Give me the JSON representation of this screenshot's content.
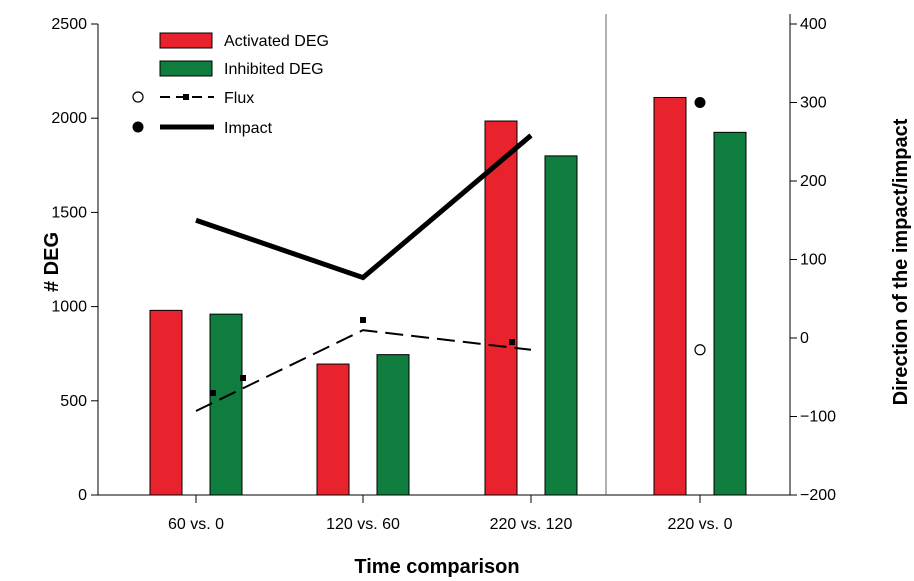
{
  "chart_data": {
    "type": "bar",
    "xlabel": "Time comparison",
    "ylabel_left": "# DEG",
    "ylabel_right": "Direction of the impact/impact",
    "categories": [
      "60 vs. 0",
      "120 vs. 60",
      "220 vs. 120",
      "220 vs. 0"
    ],
    "ylim_left": [
      0,
      2500
    ],
    "yticks_left": [
      "0",
      "500",
      "1000",
      "1500",
      "2000",
      "2500"
    ],
    "ylim_right": [
      -200,
      400
    ],
    "yticks_right": [
      "−200",
      "−100",
      "0",
      "100",
      "200",
      "300",
      "400"
    ],
    "grid": false,
    "legend_position": "top-left",
    "bar_series": [
      {
        "name": "Activated DEG",
        "color": "#e8232d",
        "values": [
          980,
          695,
          1985,
          2110
        ]
      },
      {
        "name": "Inhibited DEG",
        "color": "#0f7d3e",
        "values": [
          960,
          745,
          1800,
          1925
        ]
      }
    ],
    "line_series": [
      {
        "name": "Flux",
        "style": "dashed",
        "marker": "open-circle",
        "line_points": [
          {
            "x": "60 vs. 0",
            "y": -93
          },
          {
            "x": "120 vs. 60",
            "y": 10
          },
          {
            "x": "220 vs. 120",
            "y": -15
          }
        ],
        "marker_points": [
          {
            "x": "220 vs. 0",
            "y": -15
          }
        ]
      },
      {
        "name": "Impact",
        "style": "solid",
        "marker": "filled-circle",
        "line_points": [
          {
            "x": "60 vs. 0",
            "y": 150
          },
          {
            "x": "120 vs. 60",
            "y": 77
          },
          {
            "x": "220 vs. 120",
            "y": 258
          }
        ],
        "marker_points": [
          {
            "x": "220 vs. 0",
            "y": 300
          }
        ]
      }
    ]
  }
}
